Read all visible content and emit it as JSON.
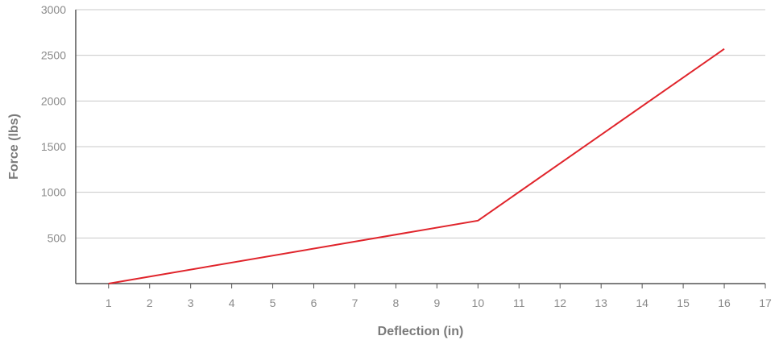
{
  "chart_data": {
    "type": "line",
    "title": "",
    "xlabel": "Deflection (in)",
    "ylabel": "Force (lbs)",
    "xlim": [
      0.2,
      17
    ],
    "ylim": [
      0,
      3000
    ],
    "x_ticks": [
      1,
      2,
      3,
      4,
      5,
      6,
      7,
      8,
      9,
      10,
      11,
      12,
      13,
      14,
      15,
      16,
      17
    ],
    "y_ticks": [
      500,
      1000,
      1500,
      2000,
      2500,
      3000
    ],
    "grid": "horizontal",
    "legend": "none",
    "series": [
      {
        "x": [
          1,
          10,
          16
        ],
        "y": [
          0,
          690,
          2570
        ],
        "color": "#e0242b"
      }
    ]
  },
  "colors": {
    "line": "#e0242b",
    "grid": "#c8c8c8",
    "axis": "#555555",
    "tick_text": "#8a8a8a",
    "axis_title": "#7a7a7a"
  }
}
